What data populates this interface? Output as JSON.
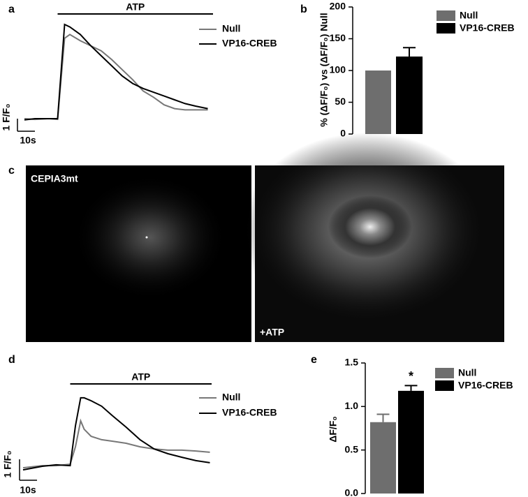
{
  "chart_data": [
    {
      "type": "line",
      "panel_label": "a",
      "x": [
        0,
        6,
        14,
        19,
        23,
        26,
        32,
        38,
        44,
        50,
        56,
        62,
        68,
        74,
        80,
        86,
        92,
        98,
        105
      ],
      "series": [
        {
          "name": "Null",
          "color": "#777777",
          "values": [
            0,
            -0.06,
            0,
            -0.06,
            6.4,
            6.7,
            6.2,
            5.8,
            5.4,
            4.7,
            3.9,
            3.1,
            2.2,
            1.7,
            1.1,
            0.8,
            0.7,
            0.7,
            0.7
          ]
        },
        {
          "name": "VP16-CREB",
          "color": "#000000",
          "values": [
            -0.1,
            0,
            0,
            0,
            7.5,
            7.3,
            6.7,
            5.8,
            5.0,
            4.2,
            3.4,
            2.8,
            2.4,
            2.1,
            1.8,
            1.5,
            1.2,
            1.0,
            0.8
          ]
        }
      ],
      "xlim": [
        0,
        108
      ],
      "ylim": [
        -0.5,
        8
      ],
      "stimulus": {
        "label": "ATP",
        "span": [
          19,
          108
        ]
      },
      "scale_bar": {
        "x": 10,
        "x_label": "10s",
        "y": 1,
        "y_label": "1 F/F₀"
      }
    },
    {
      "type": "bar",
      "panel_label": "b",
      "y_label": "% (ΔF/F₀) vs (ΔF/F₀) Null",
      "series": [
        {
          "name": "Null",
          "color": "#6e6e6e",
          "values": [
            100
          ],
          "errors": [
            null
          ]
        },
        {
          "name": "VP16-CREB",
          "color": "#000000",
          "values": [
            122
          ],
          "errors": [
            14
          ]
        }
      ],
      "ylim": [
        0,
        200
      ],
      "yticks": [
        0,
        50,
        100,
        150,
        200
      ]
    },
    {
      "type": "line",
      "panel_label": "d",
      "x": [
        0,
        11,
        19,
        27,
        30,
        33,
        35,
        39,
        45,
        51,
        59,
        67,
        75,
        83,
        91,
        99,
        107
      ],
      "series": [
        {
          "name": "Null",
          "color": "#777777",
          "values": [
            -0.07,
            0.03,
            0.03,
            0.1,
            0.93,
            2.17,
            1.77,
            1.43,
            1.27,
            1.2,
            1.1,
            0.93,
            0.83,
            0.77,
            0.77,
            0.73,
            0.67
          ]
        },
        {
          "name": "VP16-CREB",
          "color": "#000000",
          "values": [
            -0.17,
            0,
            0.07,
            0.03,
            1.93,
            3.27,
            3.27,
            3.13,
            2.87,
            2.43,
            1.87,
            1.27,
            0.83,
            0.6,
            0.43,
            0.27,
            0.17
          ]
        }
      ],
      "xlim": [
        0,
        108
      ],
      "ylim": [
        -0.5,
        3.7
      ],
      "stimulus": {
        "label": "ATP",
        "span": [
          27,
          108
        ]
      },
      "scale_bar": {
        "x": 10,
        "x_label": "10s",
        "y": 1,
        "y_label": "1 F/F₀"
      }
    },
    {
      "type": "bar",
      "panel_label": "e",
      "y_label": "ΔF/F₀",
      "series": [
        {
          "name": "Null",
          "color": "#6e6e6e",
          "values": [
            0.82
          ],
          "errors": [
            0.09
          ]
        },
        {
          "name": "VP16-CREB",
          "color": "#000000",
          "values": [
            1.18
          ],
          "errors": [
            0.06
          ],
          "significance": "*"
        }
      ],
      "ylim": [
        0,
        1.5
      ],
      "yticks": [
        {
          "value": 0,
          "label": "0.0"
        },
        {
          "value": 0.5,
          "label": "0.5"
        },
        {
          "value": 1,
          "label": "1.0"
        },
        {
          "value": 1.5,
          "label": "1.5"
        }
      ]
    }
  ],
  "images": {
    "panel_label": "c",
    "panels": [
      {
        "label": "CEPIA3mt"
      },
      {
        "label": "+ATP"
      }
    ]
  }
}
